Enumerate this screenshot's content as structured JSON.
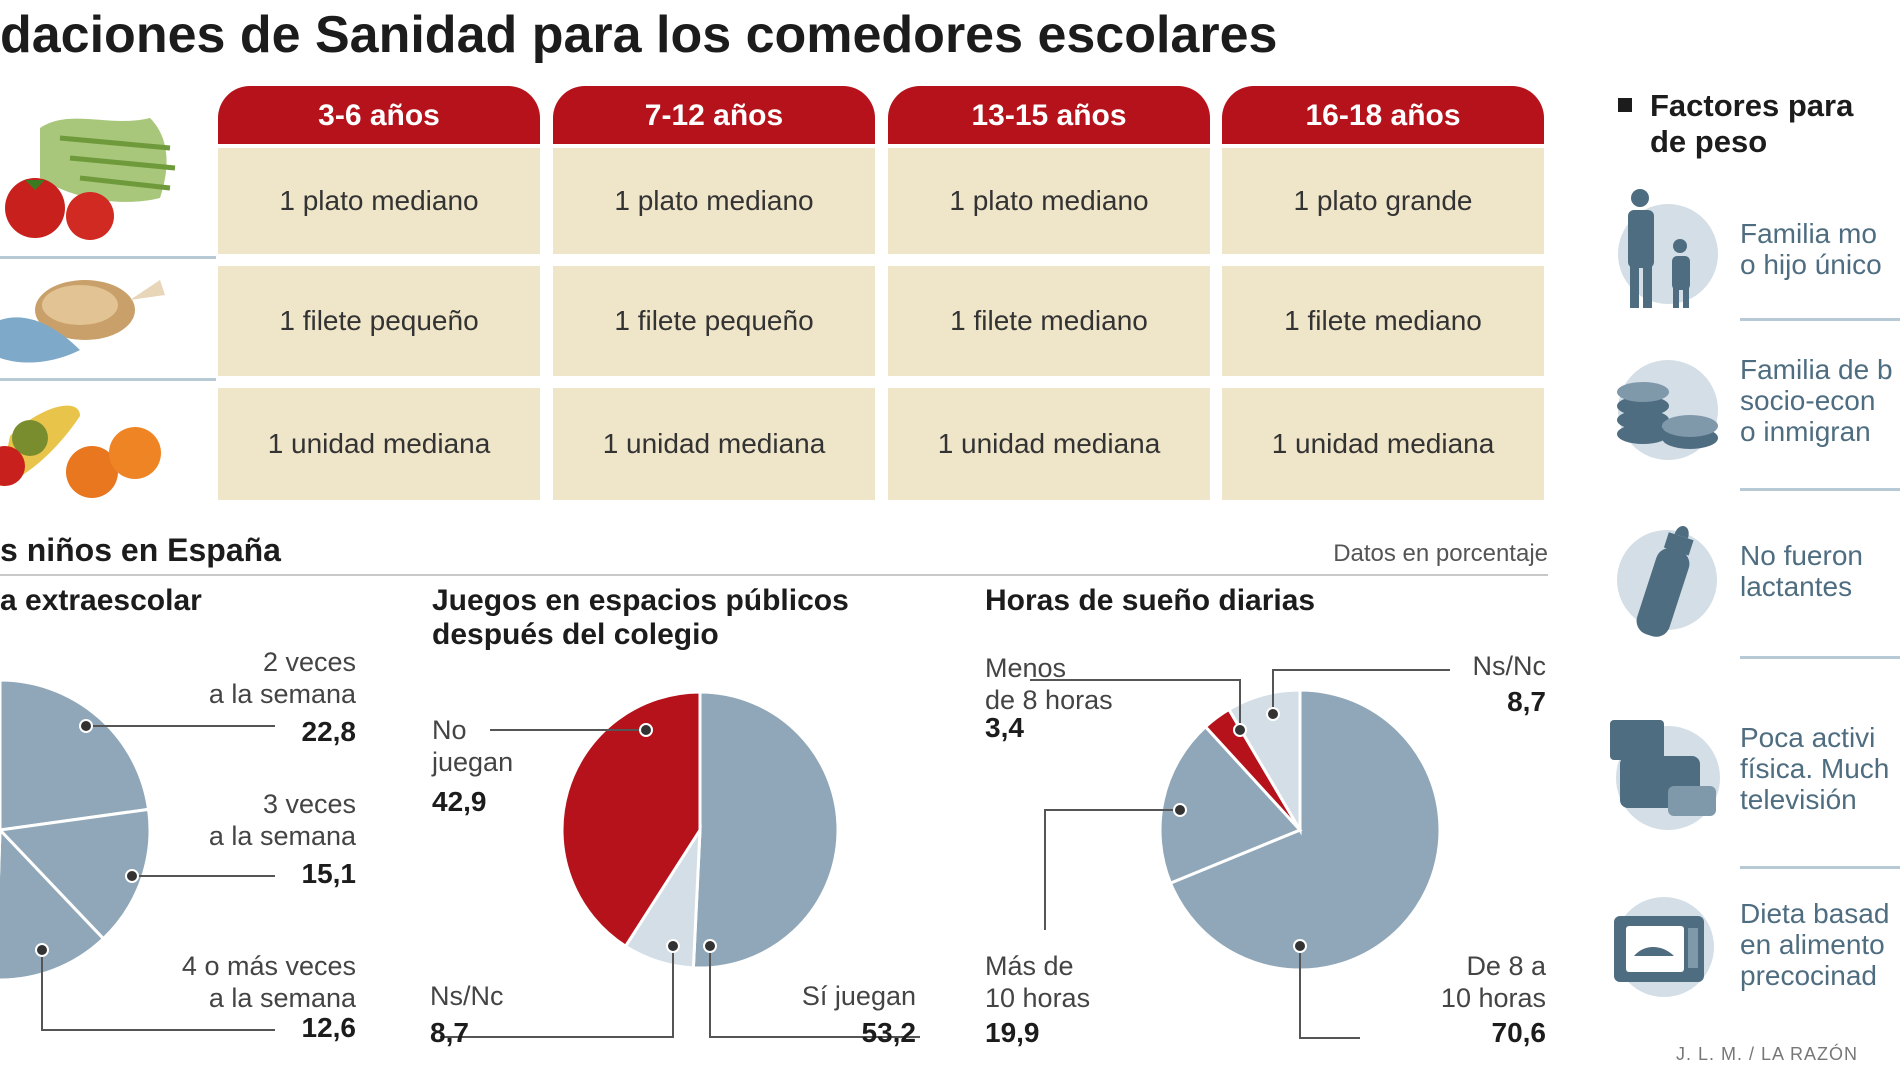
{
  "title": "daciones de Sanidad para los comedores escolares",
  "table": {
    "age_groups": [
      "3-6 años",
      "7-12 años",
      "13-15 años",
      "16-18 años"
    ],
    "rows": [
      {
        "icon": "vegetables-icon",
        "cells": [
          "1 plato mediano",
          "1 plato mediano",
          "1 plato mediano",
          "1 plato grande"
        ]
      },
      {
        "icon": "chicken-fish-icon",
        "cells": [
          "1 filete pequeño",
          "1 filete pequeño",
          "1 filete mediano",
          "1 filete mediano"
        ]
      },
      {
        "icon": "fruit-icon",
        "cells": [
          "1 unidad mediana",
          "1 unidad mediana",
          "1 unidad mediana",
          "1 unidad mediana"
        ]
      }
    ]
  },
  "section": {
    "subtitle": "s niños en España",
    "units_note": "Datos en porcentaje"
  },
  "chart_data": [
    {
      "type": "pie",
      "title": "a extraescolar",
      "categories": [
        "2 veces a la semana",
        "3 veces a la semana",
        "4 o más veces a la semana"
      ],
      "values": [
        22.8,
        15.1,
        12.6
      ],
      "labels": [
        {
          "text1": "2 veces",
          "text2": "a la semana",
          "value": "22,8"
        },
        {
          "text1": "3 veces",
          "text2": "a la semana",
          "value": "15,1"
        },
        {
          "text1": "4 o más veces",
          "text2": "a la semana",
          "value": "12,6"
        }
      ],
      "colors": [
        "#8fa7b8",
        "#b5121b"
      ],
      "note": "chart partially cropped at left edge"
    },
    {
      "type": "pie",
      "title_line1": "Juegos en espacios públicos",
      "title_line2": "después del colegio",
      "categories": [
        "No juegan",
        "Ns/Nc",
        "Sí juegan"
      ],
      "values": [
        42.9,
        8.7,
        53.2
      ],
      "labels": [
        {
          "text1": "No",
          "text2": "juegan",
          "value": "42,9"
        },
        {
          "text1": "Ns/Nc",
          "value": "8,7"
        },
        {
          "text1": "Sí juegan",
          "value": "53,2"
        }
      ],
      "colors": [
        "#b5121b",
        "#d3dee6",
        "#8fa7b8"
      ]
    },
    {
      "type": "pie",
      "title": "Horas de sueño diarias",
      "categories": [
        "Menos de 8 horas",
        "Ns/Nc",
        "De 8 a 10 horas",
        "Más de 10 horas"
      ],
      "values": [
        3.4,
        8.7,
        70.6,
        19.9
      ],
      "labels": [
        {
          "text1": "Menos",
          "text2": "de 8 horas",
          "value": "3,4"
        },
        {
          "text1": "Ns/Nc",
          "value": "8,7"
        },
        {
          "text1": "De 8 a",
          "text2": "10 horas",
          "value": "70,6"
        },
        {
          "text1": "Más de",
          "text2": "10 horas",
          "value": "19,9"
        }
      ],
      "colors": [
        "#b5121b",
        "#d3dee6",
        "#8fa7b8",
        "#8fa7b8"
      ]
    }
  ],
  "factors": {
    "heading_line1": "Factores para",
    "heading_line2": "de peso",
    "items": [
      {
        "icon": "family-icon",
        "text": "Familia mo\no hijo único"
      },
      {
        "icon": "coins-icon",
        "text": "Familia de b\nsocio-econ\no inmigran"
      },
      {
        "icon": "baby-bottle-icon",
        "text": "No fueron\nlactantes"
      },
      {
        "icon": "sofa-tv-icon",
        "text": "Poca activi\nfísica. Much\ntelevisión"
      },
      {
        "icon": "microwave-icon",
        "text": "Dieta basad\nen alimento\nprecocinad"
      }
    ]
  },
  "credit": "J. L. M. / LA RAZÓN"
}
